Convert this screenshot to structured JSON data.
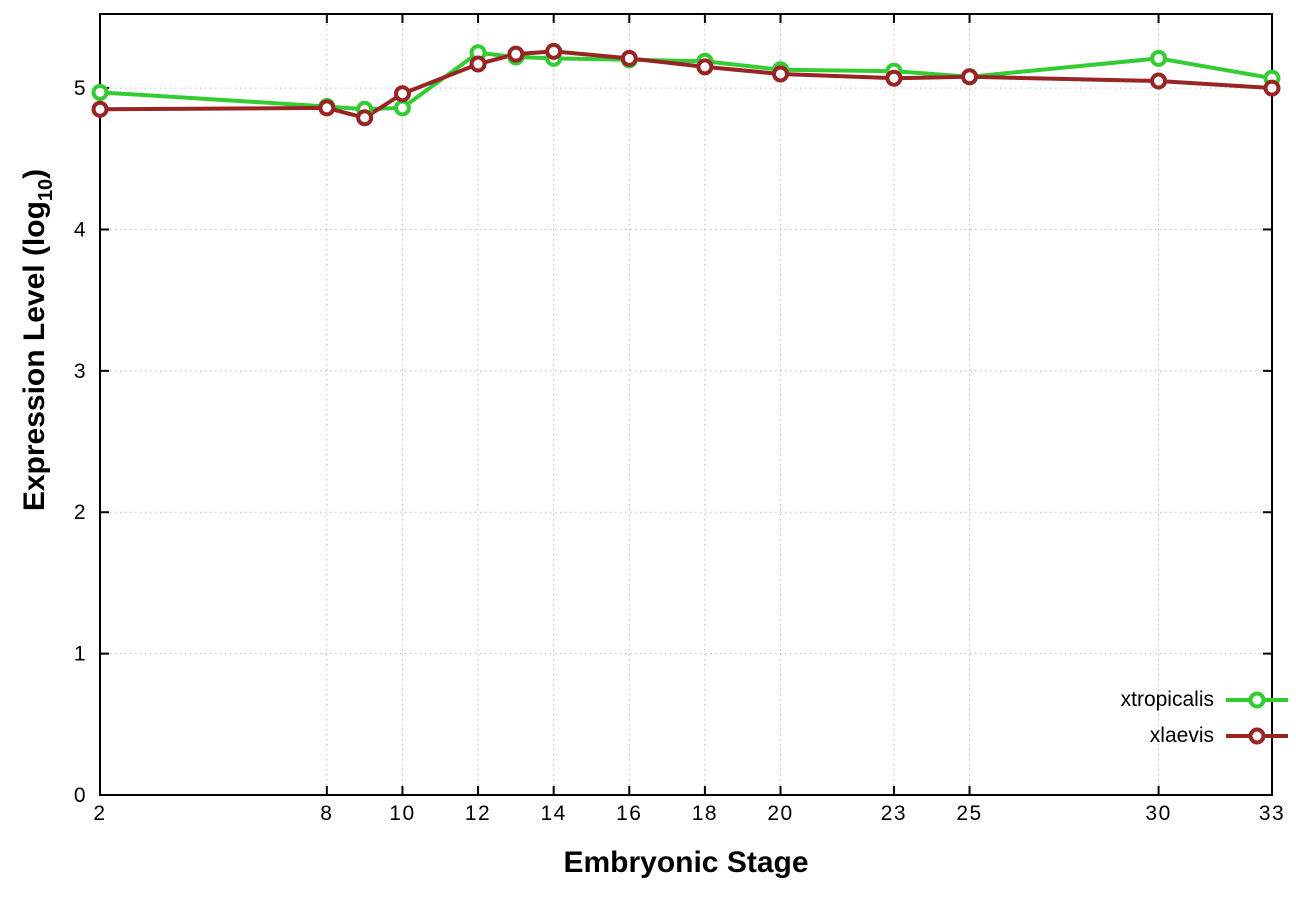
{
  "page": {
    "background": "#ffffff"
  },
  "chart_data": {
    "type": "line",
    "title": "",
    "xlabel": "Embryonic Stage",
    "ylabel": "Expression Level (log10)",
    "ylabel_parts": {
      "main": "Expression Level (log",
      "sub": "10",
      "close": ")"
    },
    "xlim": [
      2,
      33
    ],
    "ylim": [
      0,
      5.524
    ],
    "x_ticks": [
      2,
      8,
      10,
      12,
      14,
      16,
      18,
      20,
      23,
      25,
      30,
      33
    ],
    "y_ticks": [
      0,
      1,
      2,
      3,
      4,
      5
    ],
    "grid": true,
    "grid_color": "#bbbbbb",
    "legend_position": "bottom-right",
    "series": [
      {
        "name": "xtropicalis",
        "color": "#33cc33",
        "x": [
          2,
          8,
          9,
          10,
          12,
          13,
          14,
          16,
          18,
          20,
          23,
          25,
          30,
          33
        ],
        "y": [
          4.97,
          4.87,
          4.85,
          4.86,
          5.25,
          5.22,
          5.21,
          5.2,
          5.19,
          5.13,
          5.12,
          5.08,
          5.21,
          5.07
        ]
      },
      {
        "name": "xlaevis",
        "color": "#992424",
        "x": [
          2,
          8,
          9,
          10,
          12,
          13,
          14,
          16,
          18,
          20,
          23,
          25,
          30,
          33
        ],
        "y": [
          4.85,
          4.86,
          4.79,
          4.96,
          5.17,
          5.24,
          5.26,
          5.21,
          5.15,
          5.1,
          5.07,
          5.08,
          5.05,
          5.0
        ]
      }
    ]
  }
}
